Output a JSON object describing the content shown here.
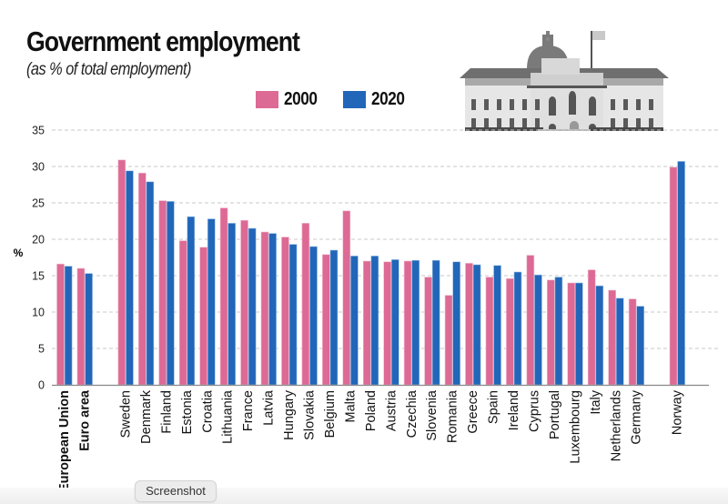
{
  "chart_data": {
    "type": "bar",
    "title": "Government employment",
    "subtitle": "(as % of total employment)",
    "xlabel": "",
    "ylabel": "%",
    "ylim": [
      0,
      35
    ],
    "yticks": [
      0,
      5,
      10,
      15,
      20,
      25,
      30,
      35
    ],
    "grid": true,
    "legend_position": "top-center",
    "colors": {
      "2000": "#dc6a95",
      "2020": "#2166b8"
    },
    "categories": [
      "European Union",
      "Euro area",
      "Sweden",
      "Denmark",
      "Finland",
      "Estonia",
      "Croatia",
      "Lithuania",
      "France",
      "Latvia",
      "Hungary",
      "Slovakia",
      "Belgium",
      "Malta",
      "Poland",
      "Austria",
      "Czechia",
      "Slovenia",
      "Romania",
      "Greece",
      "Spain",
      "Ireland",
      "Cyprus",
      "Portugal",
      "Luxembourg",
      "Italy",
      "Netherlands",
      "Germany",
      "Norway"
    ],
    "bold_categories": [
      "European Union",
      "Euro area"
    ],
    "series": [
      {
        "name": "2000",
        "values": [
          16.6,
          16.0,
          30.9,
          29.1,
          25.3,
          19.8,
          18.9,
          24.3,
          22.6,
          21.0,
          20.3,
          22.2,
          17.9,
          23.9,
          17.0,
          16.9,
          17.0,
          14.8,
          12.3,
          16.7,
          14.8,
          14.6,
          17.8,
          14.4,
          14.0,
          15.8,
          13.0,
          11.8,
          29.9
        ]
      },
      {
        "name": "2020",
        "values": [
          16.3,
          15.3,
          29.4,
          27.9,
          25.2,
          23.1,
          22.8,
          22.2,
          21.5,
          20.8,
          19.3,
          19.0,
          18.5,
          17.7,
          17.7,
          17.2,
          17.1,
          17.1,
          16.9,
          16.5,
          16.4,
          15.5,
          15.1,
          14.8,
          14.0,
          13.6,
          11.9,
          10.8,
          30.7
        ]
      }
    ]
  },
  "illustration": {
    "icon": "government-building-icon"
  },
  "tooltip": {
    "label": "Screenshot"
  }
}
